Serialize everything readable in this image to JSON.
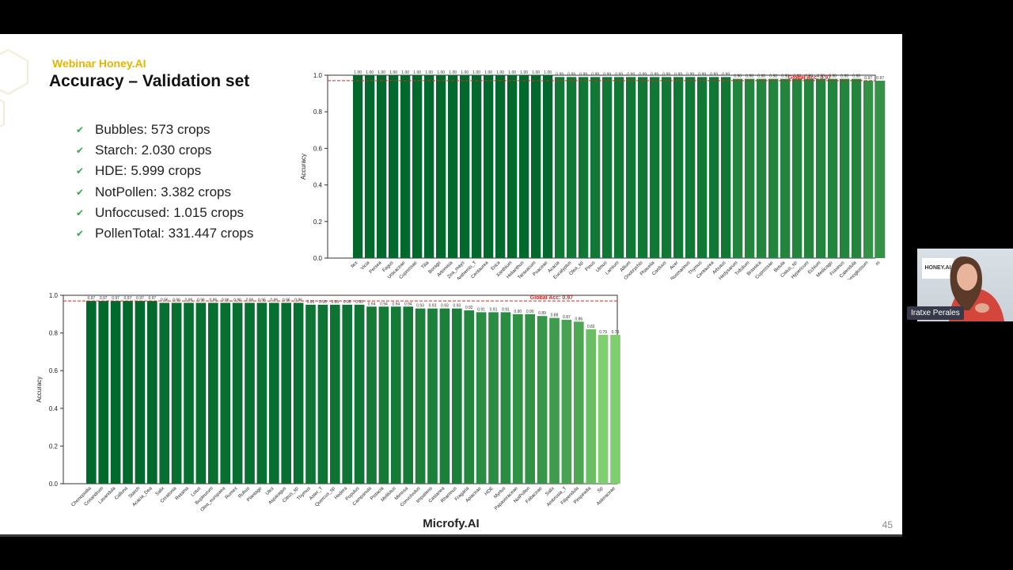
{
  "slide": {
    "brand": "Webinar Honey.AI",
    "title": "Accuracy – Validation set",
    "bullets": [
      "Bubbles: 573 crops",
      "Starch: 2.030 crops",
      "HDE: 5.999 crops",
      "NotPollen: 3.382 crops",
      "Unfoccused: 1.015 crops",
      "PollenTotal: 331.447 crops"
    ],
    "footer_logo": "Microfy.AI",
    "page_number": "45"
  },
  "webcam": {
    "logo_text": "HONEY.AI",
    "presenter_name": "Iratxe Perales"
  },
  "colors": {
    "brand_yellow": "#e8b400",
    "check_green": "#3aa84a",
    "global_line_red": "#d62728",
    "bar_dark_green": "#00692b",
    "bar_light_green": "#7fcf6f"
  },
  "chart_data": [
    {
      "type": "bar",
      "ylabel": "Accuracy",
      "ylim": [
        0,
        1.0
      ],
      "yticks": [
        "0.0",
        "0.2",
        "0.4",
        "0.6",
        "0.8",
        "1.0"
      ],
      "global_acc": 0.97,
      "global_label": "Global Acc: 0.97",
      "categories": [
        "Ilex",
        "Vicia",
        "Persea",
        "Fagus",
        "Urticaceae",
        "Cupressae",
        "Tilia",
        "Borago",
        "Artemisia",
        "Zea_mays",
        "Anthemis_T",
        "Centaurea",
        "Erica",
        "Xanthium",
        "Helianthus",
        "Taraxacum",
        "Poaceae",
        "Acacia",
        "Eucalyptus",
        "Olea_sp",
        "Pinus",
        "Ulmus",
        "Lamium",
        "Allium",
        "Onobrychis",
        "Phacelia",
        "Carduus",
        "Acer",
        "Rosmarinus",
        "Thymus",
        "Centaurea",
        "Arbutus",
        "Hedysarum",
        "Trifolium",
        "Brassica",
        "Cupressae",
        "Betula",
        "Cistus_sp",
        "Hypericum",
        "Echium",
        "Medicago",
        "Fraxinus",
        "Calendula",
        "Cynoglossum",
        "m"
      ],
      "values": [
        1.0,
        1.0,
        1.0,
        1.0,
        1.0,
        1.0,
        1.0,
        1.0,
        1.0,
        1.0,
        1.0,
        1.0,
        1.0,
        1.0,
        1.0,
        1.0,
        1.0,
        0.99,
        0.99,
        0.99,
        0.99,
        0.99,
        0.99,
        0.99,
        0.99,
        0.99,
        0.99,
        0.99,
        0.99,
        0.99,
        0.99,
        0.99,
        0.98,
        0.98,
        0.98,
        0.98,
        0.98,
        0.98,
        0.98,
        0.98,
        0.98,
        0.98,
        0.98,
        0.97,
        0.97
      ],
      "value_labels": [
        "1.00",
        "1.00",
        "1.00",
        "1.00",
        "1.00",
        "1.00",
        "1.00",
        "1.00",
        "1.00",
        "1.00",
        "1.00",
        "1.00",
        "1.00",
        "1.00",
        "1.00",
        "1.00",
        "1.00",
        "0.99",
        "0.99",
        "0.99",
        "0.99",
        "0.99",
        "0.99",
        "0.99",
        "0.99",
        "0.99",
        "0.99",
        "0.99",
        "0.99",
        "0.99",
        "0.99",
        "0.99",
        "0.98",
        "0.98",
        "0.98",
        "0.98",
        "0.98",
        "0.98",
        "0.98",
        "0.98",
        "0.98",
        "0.98",
        "0.98",
        "0.97",
        "0.97"
      ]
    },
    {
      "type": "bar",
      "ylabel": "Accuracy",
      "ylim": [
        0,
        1.0
      ],
      "yticks": [
        "0.0",
        "0.2",
        "0.4",
        "0.6",
        "0.8",
        "1.0"
      ],
      "global_acc": 0.97,
      "global_label": "Global Acc: 0.97",
      "categories": [
        "Chenopodia",
        "Coriandrum",
        "Lavandula",
        "Calluna",
        "Starch",
        "Acacia_Dea",
        "Salix",
        "Ceratonia",
        "Retama",
        "Lotus",
        "Bupleurum",
        "Olea_europaea",
        "Rumex",
        "Rubus",
        "Plantago",
        "Ulex",
        "Asparagus",
        "Citrus_sp",
        "Thymus",
        "Aster_T",
        "Quercus_sp",
        "Hedera",
        "Populus",
        "Campanula",
        "Pistacia",
        "Melilotus",
        "Mimosa",
        "Convolvulus",
        "Impatiens",
        "Castanea",
        "Rhamnus",
        "Fragaria",
        "Apiaceae",
        "HDE",
        "Myrtus",
        "Papaveraceae",
        "NotPollen",
        "Fabaceae",
        "Salix",
        "Ambrosia_T",
        "Filipendula",
        "Pimpinella",
        "Sp",
        "Asteraceae"
      ],
      "values": [
        0.97,
        0.97,
        0.97,
        0.97,
        0.97,
        0.97,
        0.96,
        0.96,
        0.96,
        0.96,
        0.96,
        0.96,
        0.96,
        0.96,
        0.96,
        0.96,
        0.96,
        0.96,
        0.95,
        0.95,
        0.95,
        0.95,
        0.95,
        0.94,
        0.94,
        0.94,
        0.94,
        0.93,
        0.93,
        0.93,
        0.93,
        0.92,
        0.91,
        0.91,
        0.91,
        0.9,
        0.9,
        0.89,
        0.88,
        0.87,
        0.86,
        0.82,
        0.79,
        0.79
      ],
      "value_labels": [
        "0.97",
        "0.97",
        "0.97",
        "0.97",
        "0.97",
        "0.97",
        "0.96",
        "0.96",
        "0.96",
        "0.96",
        "0.96",
        "0.96",
        "0.96",
        "0.96",
        "0.96",
        "0.96",
        "0.96",
        "0.96",
        "0.95",
        "0.95",
        "0.95",
        "0.95",
        "0.95",
        "0.94",
        "0.94",
        "0.94",
        "0.94",
        "0.93",
        "0.93",
        "0.93",
        "0.93",
        "0.92",
        "0.91",
        "0.91",
        "0.91",
        "0.90",
        "0.90",
        "0.89",
        "0.88",
        "0.87",
        "0.86",
        "0.82",
        "0.79",
        "0.79"
      ]
    }
  ]
}
